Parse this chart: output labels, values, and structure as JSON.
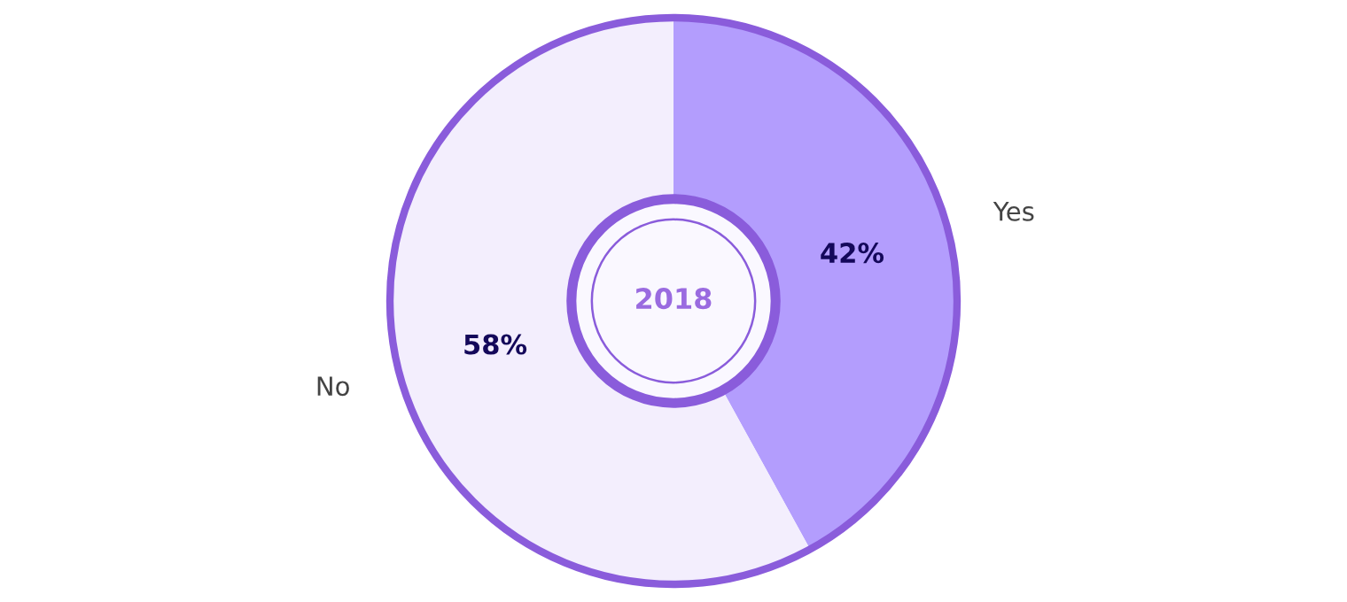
{
  "chart_data": {
    "type": "donut",
    "categories": [
      "Yes",
      "No"
    ],
    "values": [
      42,
      58
    ],
    "colors": [
      "#b39dfd",
      "#f3eefd"
    ],
    "value_labels": [
      "42%",
      "58%"
    ],
    "annotations": [
      "2018"
    ],
    "legend": false
  }
}
